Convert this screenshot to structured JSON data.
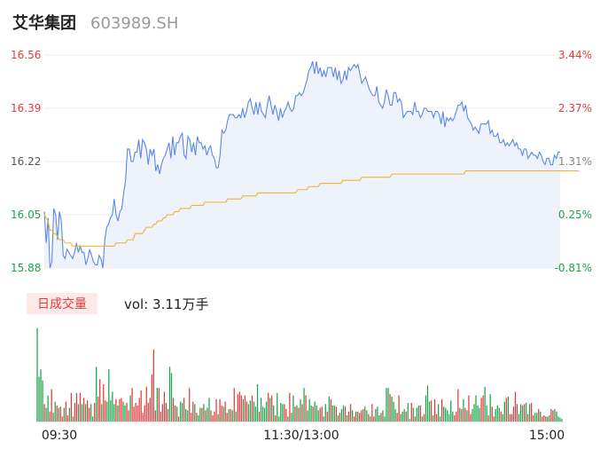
{
  "header": {
    "name": "艾华集团",
    "code": "603989.SH"
  },
  "volume_tab": {
    "label": "日成交量",
    "text": "vol: 3.11万手"
  },
  "colors": {
    "price_line": "#5b87e8",
    "avg_line": "#f2b233",
    "up": "#e23a3a",
    "down": "#1aa34a",
    "fill": "#eef2fb"
  },
  "chart_data": [
    {
      "type": "line",
      "y_left_labels": [
        "16.56",
        "16.39",
        "16.22",
        "16.05",
        "15.88"
      ],
      "y_right_labels": [
        "3.44%",
        "2.37%",
        "1.31%",
        "0.25%",
        "-0.81%"
      ],
      "ylim": [
        15.88,
        16.56
      ],
      "series": [
        {
          "values": [
            16.06,
            15.96,
            16.04,
            15.88,
            15.9,
            16.07,
            16.05,
            15.97,
            16.06,
            16.03,
            15.92,
            15.91,
            15.94,
            15.93,
            15.92,
            15.91,
            15.93,
            15.96,
            15.93,
            15.95,
            15.93,
            15.93,
            15.89,
            15.91,
            15.94,
            15.92,
            15.9,
            15.89,
            15.89,
            15.92,
            15.91,
            15.88,
            15.97,
            16.01,
            16.02,
            16.04,
            16.05,
            16.1,
            16.05,
            16.03,
            16.06,
            16.07,
            16.12,
            16.16,
            16.26,
            16.26,
            16.22,
            16.22,
            16.25,
            16.25,
            16.29,
            16.23,
            16.29,
            16.28,
            16.26,
            16.21,
            16.26,
            16.24,
            16.26,
            16.19,
            16.21,
            16.18,
            16.21,
            16.23,
            16.24,
            16.26,
            16.28,
            16.23,
            16.3,
            16.24,
            16.28,
            16.28,
            16.3,
            16.31,
            16.24,
            16.23,
            16.3,
            16.29,
            16.25,
            16.28,
            16.24,
            16.3,
            16.28,
            16.28,
            16.26,
            16.27,
            16.24,
            16.26,
            16.27,
            16.24,
            16.23,
            16.2,
            16.2,
            16.24,
            16.32,
            16.31,
            16.32,
            16.35,
            16.37,
            16.37,
            16.37,
            16.36,
            16.36,
            16.37,
            16.36,
            16.39,
            16.36,
            16.38,
            16.41,
            16.42,
            16.39,
            16.37,
            16.41,
            16.37,
            16.41,
            16.38,
            16.37,
            16.36,
            16.4,
            16.43,
            16.4,
            16.37,
            16.4,
            16.38,
            16.35,
            16.39,
            16.36,
            16.38,
            16.39,
            16.41,
            16.39,
            16.38,
            16.39,
            16.43,
            16.43,
            16.44,
            16.43,
            16.44,
            16.46,
            16.48,
            16.51,
            16.52,
            16.54,
            16.5,
            16.54,
            16.5,
            16.52,
            16.49,
            16.51,
            16.49,
            16.52,
            16.52,
            16.52,
            16.49,
            16.52,
            16.48,
            16.51,
            16.47,
            16.48,
            16.51,
            16.48,
            16.52,
            16.51,
            16.52,
            16.53,
            16.52,
            16.53,
            16.5,
            16.47,
            16.48,
            16.49,
            16.47,
            16.45,
            16.44,
            16.43,
            16.43,
            16.46,
            16.41,
            16.4,
            16.39,
            16.41,
            16.45,
            16.43,
            16.4,
            16.4,
            16.44,
            16.44,
            16.41,
            16.42,
            16.41,
            16.36,
            16.37,
            16.38,
            16.38,
            16.38,
            16.37,
            16.41,
            16.38,
            16.38,
            16.36,
            16.37,
            16.39,
            16.39,
            16.38,
            16.38,
            16.38,
            16.36,
            16.38,
            16.38,
            16.37,
            16.34,
            16.38,
            16.33,
            16.36,
            16.35,
            16.36,
            16.35,
            16.36,
            16.38,
            16.4,
            16.4,
            16.41,
            16.38,
            16.4,
            16.36,
            16.35,
            16.34,
            16.32,
            16.33,
            16.32,
            16.31,
            16.34,
            16.34,
            16.34,
            16.34,
            16.35,
            16.31,
            16.32,
            16.3,
            16.3,
            16.31,
            16.28,
            16.28,
            16.29,
            16.27,
            16.28,
            16.27,
            16.28,
            16.29,
            16.27,
            16.28,
            16.26,
            16.26,
            16.24,
            16.26,
            16.26,
            16.23,
            16.24,
            16.25,
            16.24,
            16.24,
            16.23,
            16.25,
            16.24,
            16.22,
            16.21,
            16.23,
            16.23,
            16.21,
            16.21,
            16.24,
            16.23,
            16.25,
            16.25
          ]
        },
        {
          "values": [
            16.05,
            16.04,
            16.03,
            16.0,
            16.0,
            15.99,
            15.99,
            15.98,
            15.97,
            15.97,
            15.97,
            15.96,
            15.96,
            15.96,
            15.96,
            15.95,
            15.95,
            15.95,
            15.95,
            15.95,
            15.95,
            15.95,
            15.95,
            15.95,
            15.95,
            15.95,
            15.95,
            15.95,
            15.95,
            15.95,
            15.95,
            15.95,
            15.95,
            15.95,
            15.95,
            15.95,
            15.95,
            15.95,
            15.96,
            15.96,
            15.96,
            15.96,
            15.96,
            15.96,
            15.97,
            15.97,
            15.97,
            15.97,
            15.99,
            15.99,
            15.99,
            15.99,
            15.99,
            16.0,
            16.01,
            16.01,
            16.01,
            16.01,
            16.02,
            16.02,
            16.03,
            16.03,
            16.03,
            16.04,
            16.04,
            16.05,
            16.05,
            16.05,
            16.05,
            16.06,
            16.06,
            16.06,
            16.07,
            16.07,
            16.07,
            16.07,
            16.07,
            16.07,
            16.08,
            16.08,
            16.08,
            16.08,
            16.08,
            16.08,
            16.08,
            16.09,
            16.09,
            16.09,
            16.09,
            16.09,
            16.09,
            16.09,
            16.09,
            16.09,
            16.09,
            16.09,
            16.09,
            16.1,
            16.1,
            16.1,
            16.1,
            16.1,
            16.1,
            16.1,
            16.1,
            16.11,
            16.11,
            16.11,
            16.11,
            16.11,
            16.11,
            16.11,
            16.11,
            16.12,
            16.12,
            16.12,
            16.12,
            16.12,
            16.12,
            16.12,
            16.12,
            16.12,
            16.12,
            16.12,
            16.12,
            16.12,
            16.12,
            16.12,
            16.12,
            16.12,
            16.12,
            16.12,
            16.12,
            16.12,
            16.13,
            16.13,
            16.13,
            16.13,
            16.13,
            16.13,
            16.14,
            16.14,
            16.14,
            16.14,
            16.14,
            16.14,
            16.15,
            16.15,
            16.15,
            16.15,
            16.15,
            16.15,
            16.15,
            16.15,
            16.15,
            16.15,
            16.15,
            16.15,
            16.16,
            16.16,
            16.16,
            16.16,
            16.16,
            16.16,
            16.16,
            16.16,
            16.16,
            16.16,
            16.17,
            16.17,
            16.17,
            16.17,
            16.17,
            16.17,
            16.17,
            16.17,
            16.17,
            16.17,
            16.17,
            16.17,
            16.17,
            16.17,
            16.17,
            16.17,
            16.18,
            16.18,
            16.18,
            16.18,
            16.18,
            16.18,
            16.18,
            16.18,
            16.18,
            16.18,
            16.18,
            16.18,
            16.18,
            16.18,
            16.18,
            16.18,
            16.18,
            16.18,
            16.18,
            16.18,
            16.18,
            16.18,
            16.18,
            16.18,
            16.18,
            16.18,
            16.18,
            16.18,
            16.18,
            16.18,
            16.18,
            16.18,
            16.18,
            16.18,
            16.18,
            16.18,
            16.18,
            16.18,
            16.18,
            16.19,
            16.19,
            16.19,
            16.19,
            16.19,
            16.19,
            16.19,
            16.19,
            16.19,
            16.19,
            16.19,
            16.19,
            16.19,
            16.19,
            16.19,
            16.19,
            16.19,
            16.19,
            16.19,
            16.19,
            16.19,
            16.19,
            16.19,
            16.19,
            16.19,
            16.19,
            16.19,
            16.19,
            16.19,
            16.19,
            16.19,
            16.19,
            16.19,
            16.19,
            16.19,
            16.19,
            16.19,
            16.19,
            16.19,
            16.19,
            16.19,
            16.19,
            16.19,
            16.19,
            16.19,
            16.19,
            16.19,
            16.19,
            16.19,
            16.19,
            16.19,
            16.19,
            16.19,
            16.19,
            16.19,
            16.19,
            16.19,
            16.19,
            16.19,
            16.19,
            16.19
          ]
        }
      ]
    },
    {
      "type": "bar",
      "x_labels": [
        "09:30",
        "11:30/13:00",
        "15:00"
      ],
      "values": [
        75,
        36,
        42,
        33,
        14,
        11,
        21,
        8,
        26,
        7,
        16,
        13,
        11,
        12,
        4,
        11,
        16,
        5,
        11,
        23,
        4,
        15,
        23,
        14,
        23,
        14,
        19,
        14,
        17,
        11,
        14,
        4,
        15,
        44,
        20,
        34,
        14,
        30,
        17,
        16,
        42,
        17,
        24,
        14,
        18,
        13,
        18,
        19,
        16,
        13,
        15,
        9,
        21,
        27,
        12,
        15,
        13,
        19,
        25,
        7,
        13,
        28,
        15,
        19,
        38,
        58,
        9,
        27,
        27,
        8,
        14,
        24,
        15,
        10,
        44,
        39,
        19,
        13,
        12,
        4,
        16,
        15,
        19,
        10,
        9,
        27,
        7,
        16,
        14,
        7,
        5,
        11,
        11,
        14,
        9,
        11,
        19,
        9,
        5,
        8,
        18,
        6,
        18,
        13,
        12,
        16,
        7,
        10,
        10,
        9,
        27,
        8,
        22,
        24,
        21,
        18,
        21,
        16,
        14,
        17,
        21,
        16,
        12,
        30,
        8,
        19,
        12,
        11,
        16,
        23,
        19,
        21,
        13,
        5,
        23,
        4,
        15,
        14,
        14,
        10,
        4,
        23,
        7,
        21,
        12,
        13,
        11,
        18,
        14,
        27,
        21,
        9,
        18,
        13,
        12,
        16,
        13,
        9,
        11,
        12,
        4,
        14,
        8,
        20,
        18,
        13,
        13,
        12,
        5,
        7,
        10,
        13,
        12,
        5,
        8,
        14,
        9,
        4,
        8,
        8,
        7,
        9,
        10,
        12,
        9,
        6,
        4,
        14,
        4,
        10,
        12,
        5,
        7,
        9,
        4,
        27,
        27,
        22,
        20,
        16,
        10,
        7,
        21,
        6,
        8,
        10,
        8,
        15,
        2,
        15,
        11,
        4,
        11,
        13,
        13,
        4,
        6,
        21,
        29,
        16,
        17,
        5,
        18,
        6,
        14,
        4,
        18,
        12,
        11,
        9,
        6,
        17,
        8,
        5,
        8,
        26,
        11,
        10,
        18,
        11,
        9,
        21,
        6,
        10,
        14,
        21,
        13,
        11,
        19,
        21,
        28,
        13,
        5,
        22,
        12,
        4,
        10,
        13,
        11,
        8,
        6,
        16,
        19,
        20,
        6,
        6,
        12,
        24,
        14,
        6,
        14,
        13,
        14,
        15,
        6,
        14,
        15,
        5,
        7,
        7,
        10,
        8,
        4,
        5,
        4,
        4,
        5,
        10,
        9,
        10,
        8,
        4,
        3,
        2
      ],
      "directions": [
        "down",
        "down",
        "down",
        "down",
        "up",
        "down",
        "down",
        "up",
        "up",
        "down",
        "down",
        "up",
        "down",
        "up",
        "up",
        "down",
        "up",
        "up",
        "down",
        "up",
        "down",
        "up",
        "up",
        "down",
        "up",
        "down",
        "up",
        "down",
        "up",
        "up",
        "down",
        "down",
        "up",
        "down",
        "up",
        "up",
        "down",
        "up",
        "up",
        "down",
        "down",
        "down",
        "down",
        "down",
        "up",
        "down",
        "up",
        "up",
        "down",
        "down",
        "up",
        "up",
        "down",
        "up",
        "up",
        "up",
        "up",
        "up",
        "up",
        "up",
        "up",
        "up",
        "up",
        "up",
        "up",
        "up",
        "up",
        "down",
        "up",
        "up",
        "up",
        "up",
        "up",
        "up",
        "down",
        "down",
        "up",
        "up",
        "down",
        "up",
        "down",
        "down",
        "up",
        "down",
        "down",
        "up",
        "up",
        "up",
        "down",
        "up",
        "down",
        "down",
        "up",
        "down",
        "up",
        "down",
        "down",
        "up",
        "up",
        "up",
        "up",
        "down",
        "up",
        "up",
        "down",
        "up",
        "up",
        "down",
        "up",
        "down",
        "up",
        "down",
        "up",
        "up",
        "up",
        "down",
        "up",
        "up",
        "down",
        "down",
        "up",
        "down",
        "down",
        "down",
        "up",
        "down",
        "down",
        "down",
        "down",
        "up",
        "down",
        "up",
        "down",
        "up",
        "down",
        "down",
        "down",
        "down",
        "up",
        "up",
        "down",
        "up",
        "down",
        "down",
        "up",
        "down",
        "up",
        "down",
        "up",
        "down",
        "up",
        "down",
        "down",
        "down",
        "up",
        "down",
        "down",
        "down",
        "up",
        "up",
        "down",
        "down",
        "up",
        "down",
        "up",
        "down",
        "down",
        "up",
        "down",
        "up",
        "down",
        "down",
        "up",
        "down",
        "up",
        "up",
        "down",
        "up",
        "up",
        "down",
        "up",
        "up",
        "up",
        "down",
        "down",
        "up",
        "down",
        "up",
        "up",
        "down",
        "down",
        "down",
        "up",
        "down",
        "down",
        "down",
        "down",
        "up",
        "down",
        "down",
        "down",
        "up",
        "up",
        "down",
        "down",
        "down",
        "up",
        "down",
        "down",
        "up",
        "down",
        "up",
        "down",
        "down",
        "up",
        "down",
        "up",
        "down",
        "down",
        "down",
        "up",
        "down",
        "up",
        "up",
        "down",
        "down",
        "up",
        "down",
        "down",
        "down",
        "down",
        "down",
        "down",
        "up",
        "up",
        "up",
        "down",
        "up",
        "down",
        "up",
        "down",
        "up",
        "up",
        "down",
        "down",
        "down",
        "down",
        "down",
        "up",
        "up",
        "down",
        "down",
        "up",
        "down",
        "up",
        "up",
        "down",
        "down",
        "down",
        "up",
        "down",
        "down",
        "up",
        "down",
        "up",
        "up",
        "up",
        "up",
        "up",
        "down",
        "down",
        "down",
        "up",
        "down",
        "up",
        "down",
        "up",
        "up",
        "down",
        "down",
        "up",
        "down",
        "up",
        "up",
        "down",
        "up",
        "down",
        "up",
        "up",
        "down"
      ]
    }
  ]
}
